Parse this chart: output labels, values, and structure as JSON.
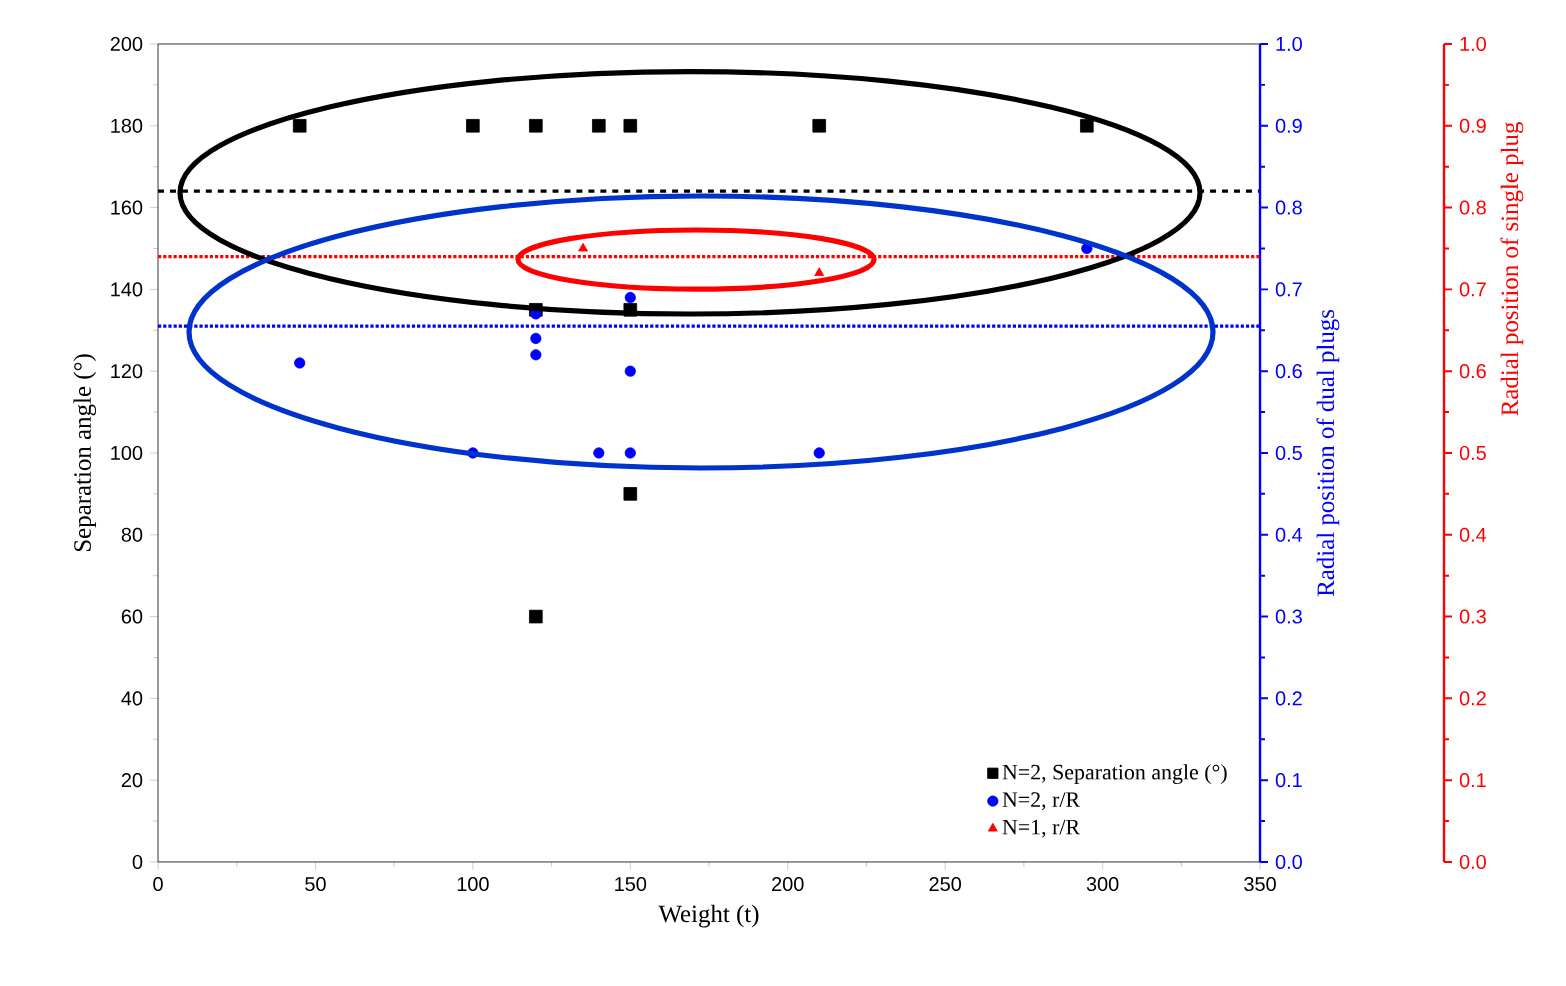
{
  "chart_data": {
    "type": "scatter",
    "xlabel": "Weight (t)",
    "ylabel": "Separation angle (°)",
    "y2label": "Radial position of dual plugs",
    "y3label": "Radial position of single plug",
    "xlim": [
      0,
      350
    ],
    "xticks": [
      0,
      50,
      100,
      150,
      200,
      250,
      300,
      350
    ],
    "ylim": [
      0,
      200
    ],
    "yticks": [
      0,
      20,
      40,
      60,
      80,
      100,
      120,
      140,
      160,
      180,
      200
    ],
    "y2lim": [
      0,
      1
    ],
    "y2ticks": [
      {
        "value": 0,
        "label": "0.0"
      },
      {
        "value": 0.1,
        "label": "0.1"
      },
      {
        "value": 0.2,
        "label": "0.2"
      },
      {
        "value": 0.3,
        "label": "0.3"
      },
      {
        "value": 0.4,
        "label": "0.4"
      },
      {
        "value": 0.5,
        "label": "0.5"
      },
      {
        "value": 0.6,
        "label": "0.6"
      },
      {
        "value": 0.7,
        "label": "0.7"
      },
      {
        "value": 0.8,
        "label": "0.8"
      },
      {
        "value": 0.9,
        "label": "0.9"
      },
      {
        "value": 1,
        "label": "1.0"
      }
    ],
    "y3lim": [
      0,
      1
    ],
    "y3ticks": [
      {
        "value": 0,
        "label": "0.0"
      },
      {
        "value": 0.1,
        "label": "0.1"
      },
      {
        "value": 0.2,
        "label": "0.2"
      },
      {
        "value": 0.3,
        "label": "0.3"
      },
      {
        "value": 0.4,
        "label": "0.4"
      },
      {
        "value": 0.5,
        "label": "0.5"
      },
      {
        "value": 0.6,
        "label": "0.6"
      },
      {
        "value": 0.7,
        "label": "0.7"
      },
      {
        "value": 0.8,
        "label": "0.8"
      },
      {
        "value": 0.9,
        "label": "0.9"
      },
      {
        "value": 1,
        "label": "1.0"
      }
    ],
    "legend": "bottom right",
    "grid": false,
    "series": [
      {
        "name": "N=2, Separation angle (°)",
        "color": "#000000",
        "marker": "square",
        "axis": "y",
        "x": [
          45,
          100,
          120,
          140,
          150,
          210,
          295,
          120,
          150,
          150,
          120
        ],
        "values": [
          180,
          180,
          180,
          180,
          180,
          180,
          180,
          135,
          135,
          90,
          60
        ]
      },
      {
        "name": "N=2, r/R",
        "color": "#0000ff",
        "marker": "circle",
        "axis": "y2",
        "x": [
          45,
          100,
          120,
          120,
          120,
          140,
          150,
          150,
          150,
          210,
          295
        ],
        "values": [
          0.61,
          0.5,
          0.67,
          0.64,
          0.62,
          0.5,
          0.5,
          0.6,
          0.69,
          0.5,
          0.75
        ]
      },
      {
        "name": "N=1, r/R",
        "color": "#ff0000",
        "marker": "triangle",
        "axis": "y3",
        "x": [
          135,
          210
        ],
        "values": [
          0.75,
          0.72
        ]
      }
    ],
    "ref_lines": [
      {
        "axis": "y",
        "value": 164,
        "color": "#000000",
        "line_style": "dashed"
      },
      {
        "axis": "y2",
        "value": 0.655,
        "color": "#0000ff",
        "line_style": "dotted"
      },
      {
        "axis": "y3",
        "value": 0.74,
        "color": "#ff0000",
        "line_style": "dotted"
      }
    ]
  }
}
